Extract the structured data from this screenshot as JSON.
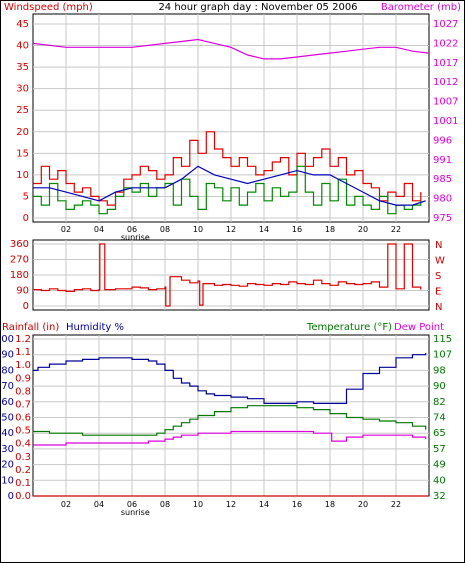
{
  "header": {
    "left": "Windspeed (mph)",
    "center": "24 hour graph day : November 05 2006",
    "right": "Barometer (mb)"
  },
  "colors": {
    "wind_speed": "#dd0000",
    "wind_avg": "#0000bb",
    "wind_gust": "#008800",
    "barometer": "#dd00dd",
    "rain": "#cc0000",
    "humidity": "#000099",
    "temperature": "#007700",
    "dewpoint": "#dd00dd"
  },
  "chart_data": [
    {
      "type": "line",
      "name": "wind-barometer",
      "xlim": [
        0,
        24
      ],
      "x_ticks": [
        "02",
        "04",
        "06",
        "08",
        "10",
        "12",
        "14",
        "16",
        "18",
        "20",
        "22"
      ],
      "x_tick_hours": [
        2,
        4,
        6,
        8,
        10,
        12,
        14,
        16,
        18,
        20,
        22
      ],
      "sunrise_label": "sunrise",
      "y_left_ticks": [
        0,
        5,
        10,
        15,
        20,
        25,
        30,
        35,
        40,
        45
      ],
      "y_left_lim": [
        0,
        45
      ],
      "y_right_ticks": [
        975,
        980,
        985,
        991,
        996,
        1001,
        1007,
        1012,
        1017,
        1022,
        1027
      ],
      "y_right_lim": [
        975,
        1027
      ],
      "barometer": {
        "x": [
          0,
          2,
          4,
          6,
          8,
          9,
          10,
          11,
          12,
          13,
          14,
          15,
          16,
          17,
          18,
          19,
          20,
          21,
          22,
          23,
          24
        ],
        "values": [
          1022,
          1021,
          1021,
          1021,
          1022,
          1022.5,
          1023,
          1022,
          1021,
          1019,
          1018,
          1018,
          1018.5,
          1019,
          1019.5,
          1020,
          1020.5,
          1021,
          1021,
          1020,
          1019.5
        ]
      },
      "wind_speed": {
        "x": [
          0,
          0.5,
          1,
          1.5,
          2,
          2.5,
          3,
          3.5,
          4,
          4.5,
          5,
          5.5,
          6,
          6.5,
          7,
          7.5,
          8,
          8.5,
          9,
          9.5,
          10,
          10.5,
          11,
          11.5,
          12,
          12.5,
          13,
          13.5,
          14,
          14.5,
          15,
          15.5,
          16,
          16.5,
          17,
          17.5,
          18,
          18.5,
          19,
          19.5,
          20,
          20.5,
          21,
          21.5,
          22,
          22.5,
          23,
          23.5
        ],
        "values": [
          8,
          12,
          9,
          11,
          8,
          6,
          7,
          5,
          4,
          3,
          6,
          9,
          10,
          12,
          11,
          9,
          10,
          14,
          12,
          18,
          15,
          20,
          16,
          14,
          12,
          14,
          12,
          10,
          11,
          13,
          14,
          10,
          15,
          12,
          14,
          16,
          12,
          14,
          10,
          11,
          8,
          7,
          4,
          6,
          5,
          8,
          4,
          6
        ]
      },
      "wind_avg": {
        "x": [
          0,
          1,
          2,
          3,
          4,
          5,
          6,
          7,
          8,
          9,
          10,
          11,
          12,
          13,
          14,
          15,
          16,
          17,
          18,
          19,
          20,
          21,
          22,
          23,
          23.8
        ],
        "values": [
          7,
          7,
          6,
          5,
          4,
          6,
          7,
          7,
          7,
          9,
          12,
          10,
          9,
          8,
          9,
          10,
          11,
          10,
          10,
          8,
          6,
          4,
          3,
          3,
          4
        ]
      },
      "wind_gust": {
        "x": [
          0,
          0.5,
          1,
          1.5,
          2,
          2.5,
          3,
          3.5,
          4,
          4.5,
          5,
          5.5,
          6,
          6.5,
          7,
          7.5,
          8,
          8.5,
          9,
          9.5,
          10,
          10.5,
          11,
          11.5,
          12,
          12.5,
          13,
          13.5,
          14,
          14.5,
          15,
          15.5,
          16,
          16.5,
          17,
          17.5,
          18,
          18.5,
          19,
          19.5,
          20,
          20.5,
          21,
          21.5,
          22,
          22.5,
          23,
          23.5
        ],
        "values": [
          5,
          3,
          8,
          4,
          2,
          3,
          4,
          3,
          1,
          2,
          5,
          7,
          6,
          8,
          5,
          7,
          8,
          3,
          9,
          5,
          2,
          8,
          7,
          4,
          7,
          3,
          6,
          8,
          4,
          7,
          5,
          6,
          12,
          6,
          3,
          8,
          4,
          9,
          3,
          5,
          3,
          2,
          5,
          1,
          3,
          2,
          3,
          4
        ]
      }
    },
    {
      "type": "line",
      "name": "wind-direction",
      "xlim": [
        0,
        24
      ],
      "y_left_ticks": [
        0,
        90,
        180,
        270,
        360
      ],
      "y_left_lim": [
        0,
        360
      ],
      "y_right_labels": [
        "N",
        "W",
        "S",
        "E",
        "N"
      ],
      "direction": {
        "x": [
          0,
          0.5,
          1,
          1.5,
          2,
          2.5,
          3,
          3.5,
          4,
          4.05,
          4.3,
          4.35,
          5,
          5.5,
          6,
          6.5,
          7,
          7.5,
          8,
          8.05,
          8.3,
          9,
          9.5,
          10,
          10.1,
          10.3,
          11,
          11.5,
          12,
          12.5,
          13,
          13.5,
          14,
          14.5,
          15,
          15.5,
          16,
          16.5,
          17,
          17.5,
          18,
          18.5,
          19,
          19.5,
          20,
          20.5,
          21,
          21.5,
          22,
          22.5,
          23,
          23.5
        ],
        "values": [
          95,
          90,
          100,
          90,
          85,
          95,
          100,
          90,
          95,
          360,
          360,
          95,
          100,
          100,
          110,
          105,
          95,
          100,
          110,
          0,
          170,
          150,
          135,
          145,
          5,
          130,
          120,
          125,
          120,
          115,
          130,
          125,
          120,
          130,
          125,
          140,
          130,
          125,
          150,
          130,
          120,
          140,
          130,
          125,
          130,
          140,
          110,
          360,
          100,
          360,
          110,
          95
        ]
      }
    },
    {
      "type": "line",
      "name": "rain-humidity-temperature",
      "left_header_rain": "Rainfall (in)",
      "left_header_humidity": "Humidity %",
      "right_header_temp": "Temperature (°F)",
      "right_header_dew": "Dew Point",
      "xlim": [
        0,
        24
      ],
      "x_ticks": [
        "02",
        "04",
        "06",
        "08",
        "10",
        "12",
        "14",
        "16",
        "18",
        "20",
        "22"
      ],
      "x_tick_hours": [
        2,
        4,
        6,
        8,
        10,
        12,
        14,
        16,
        18,
        20,
        22
      ],
      "sunrise_label": "sunrise",
      "humidity_ticks": [
        0,
        10,
        20,
        30,
        40,
        50,
        60,
        70,
        80,
        90,
        100
      ],
      "humidity_lim": [
        0,
        100
      ],
      "rain_ticks": [
        "0.0",
        "0.1",
        "0.2",
        "0.3",
        "0.4",
        "0.5",
        "0.6",
        "0.7",
        "0.8",
        "0.9",
        "1.0",
        "1.1",
        "1.2"
      ],
      "rain_lim": [
        0,
        1.2
      ],
      "temp_ticks": [
        32,
        40,
        49,
        57,
        65,
        74,
        82,
        90,
        98,
        107,
        115
      ],
      "temp_lim": [
        32,
        115
      ],
      "humidity": {
        "x": [
          0,
          0.3,
          1,
          2,
          3,
          4,
          5,
          6,
          7,
          7.5,
          8,
          8.5,
          9,
          9.5,
          10,
          10.5,
          11,
          12,
          13,
          14,
          15,
          16,
          16.5,
          17,
          18,
          19,
          20,
          21,
          22,
          23,
          23.8
        ],
        "values": [
          80,
          82,
          84,
          86,
          87,
          88,
          88,
          87,
          86,
          84,
          80,
          75,
          72,
          70,
          67,
          65,
          64,
          63,
          62,
          59,
          59,
          60,
          60,
          59,
          59,
          68,
          78,
          82,
          88,
          90,
          91
        ]
      },
      "rain": {
        "x": [
          0,
          24
        ],
        "values": [
          0,
          0
        ]
      },
      "temperature": {
        "x": [
          0,
          1,
          2,
          3,
          4,
          5,
          6,
          7,
          7.5,
          8,
          8.5,
          9,
          9.5,
          10,
          11,
          12,
          13,
          14,
          15,
          16,
          17,
          18,
          19,
          20,
          21,
          22,
          23,
          23.8
        ],
        "values": [
          66,
          65,
          65,
          64,
          64,
          64,
          64,
          64,
          65,
          67,
          69,
          71,
          73,
          75,
          77,
          79,
          80,
          80,
          80,
          79,
          78,
          76,
          74,
          73,
          72,
          71,
          69,
          67
        ]
      },
      "dewpoint": {
        "x": [
          0,
          1,
          2,
          3,
          4,
          5,
          6,
          7,
          7.5,
          8,
          8.5,
          9,
          10,
          11,
          12,
          13,
          14,
          15,
          16,
          17,
          18,
          18.1,
          19,
          20,
          21,
          22,
          23,
          23.8
        ],
        "values": [
          59,
          59,
          60,
          60,
          60,
          60,
          60,
          61,
          61,
          62,
          63,
          64,
          65,
          65,
          66,
          66,
          66,
          66,
          66,
          65,
          65,
          61,
          63,
          64,
          64,
          64,
          63,
          62
        ]
      }
    }
  ]
}
